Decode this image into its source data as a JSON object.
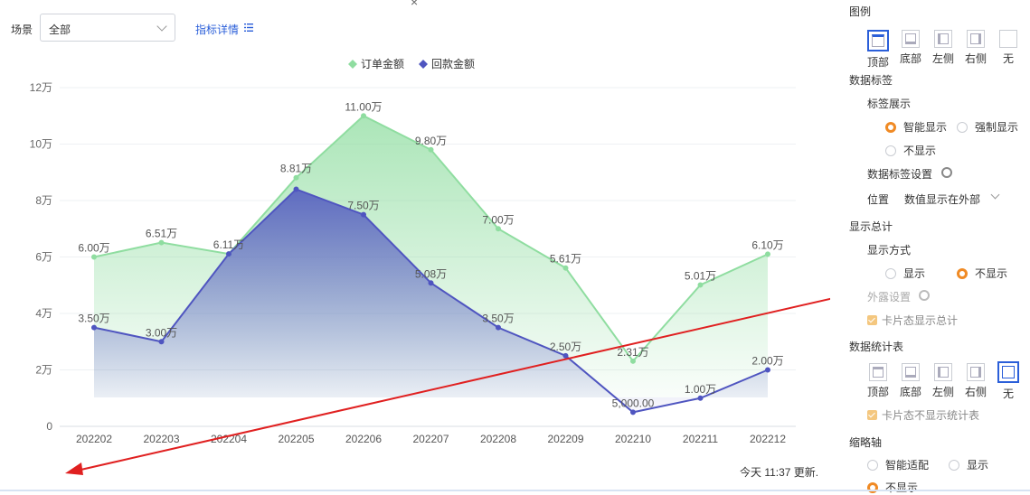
{
  "toolbar": {
    "filter_label": "场景",
    "filter_value": "全部",
    "detail_link": "指标详情",
    "timestamp": "今天 11:37 更新."
  },
  "colors": {
    "order": "#8fdda0",
    "payment": "#4f55c0",
    "accent": "#2b5fd9",
    "radio_on": "#f08a24",
    "arrow": "#e02020"
  },
  "chart_data": {
    "type": "area",
    "categories": [
      "202202",
      "202203",
      "202204",
      "202205",
      "202206",
      "202207",
      "202208",
      "202209",
      "202210",
      "202211",
      "202212"
    ],
    "series": [
      {
        "name": "订单金额",
        "color": "#8fdda0",
        "values": [
          60000,
          65100,
          61100,
          88100,
          110000,
          98000,
          70000,
          56100,
          23100,
          50100,
          61000
        ],
        "labels": [
          "6.00万",
          "6.51万",
          "6.11万",
          "8.81万",
          "11.00万",
          "9.80万",
          "7.00万",
          "5.61万",
          "2.31万",
          "5.01万",
          "6.10万"
        ]
      },
      {
        "name": "回款金额",
        "color": "#4f55c0",
        "values": [
          35000,
          30000,
          61100,
          84000,
          75000,
          50800,
          35000,
          25000,
          5000,
          10000,
          20000
        ],
        "labels": [
          "3.50万",
          "3.00万",
          "",
          "",
          "7.50万",
          "5.08万",
          "3.50万",
          "2.50万",
          "5,000.00",
          "1.00万",
          "2.00万"
        ]
      }
    ],
    "yticks": [
      "0",
      "2万",
      "4万",
      "6万",
      "8万",
      "10万",
      "12万"
    ],
    "ylim": [
      0,
      120000
    ],
    "legend": "top-center",
    "grid": true
  },
  "panel": {
    "legend_title": "图例",
    "legend_positions": [
      "顶部",
      "底部",
      "左侧",
      "右侧",
      "无"
    ],
    "data_labels_title": "数据标签",
    "label_display_title": "标签展示",
    "label_opts": [
      "智能显示",
      "强制显示",
      "不显示"
    ],
    "label_settings": "数据标签设置",
    "position_label": "位置",
    "position_value": "数值显示在外部",
    "total_title": "显示总计",
    "total_mode_title": "显示方式",
    "total_opts": [
      "显示",
      "不显示"
    ],
    "outer_settings": "外露设置",
    "card_show_total": "卡片态显示总计",
    "stats_title": "数据统计表",
    "stats_positions": [
      "顶部",
      "底部",
      "左侧",
      "右侧",
      "无"
    ],
    "card_hide_stats": "卡片态不显示统计表",
    "thumb_title": "缩略轴",
    "thumb_opts": [
      "智能适配",
      "显示",
      "不显示"
    ]
  }
}
